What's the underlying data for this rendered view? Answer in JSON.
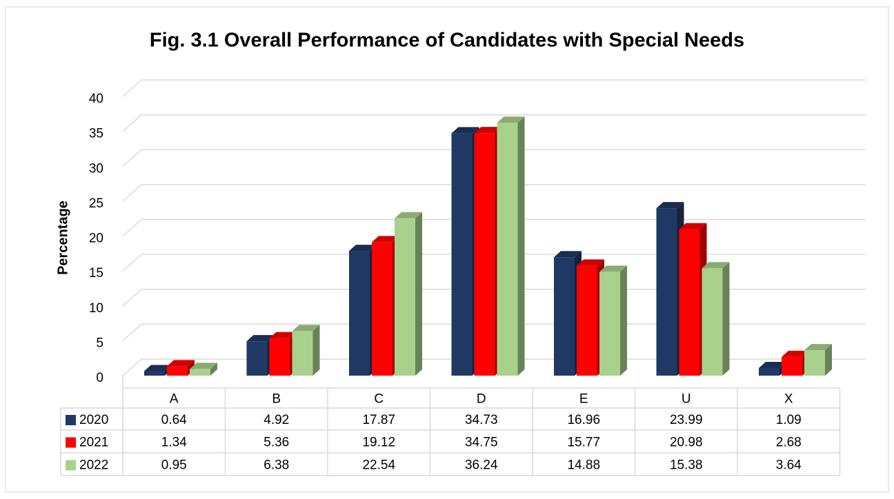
{
  "chart_data": {
    "type": "bar3d",
    "title": "Fig. 3.1 Overall Performance of Candidates with Special Needs",
    "ylabel": "Percentage",
    "categories": [
      "A",
      "B",
      "C",
      "D",
      "E",
      "U",
      "X"
    ],
    "series": [
      {
        "name": "2020",
        "color": "#203864",
        "values": [
          0.64,
          4.92,
          17.87,
          34.73,
          16.96,
          23.99,
          1.09
        ]
      },
      {
        "name": "2021",
        "color": "#ff0000",
        "values": [
          1.34,
          5.36,
          19.12,
          34.75,
          15.77,
          20.98,
          2.68
        ]
      },
      {
        "name": "2022",
        "color": "#a9d18e",
        "values": [
          0.95,
          6.38,
          22.54,
          36.24,
          14.88,
          15.38,
          3.64
        ]
      }
    ],
    "ylim": [
      0,
      40
    ],
    "yticks": [
      0,
      5,
      10,
      15,
      20,
      25,
      30,
      35,
      40
    ],
    "grid": true,
    "data_table": true
  }
}
